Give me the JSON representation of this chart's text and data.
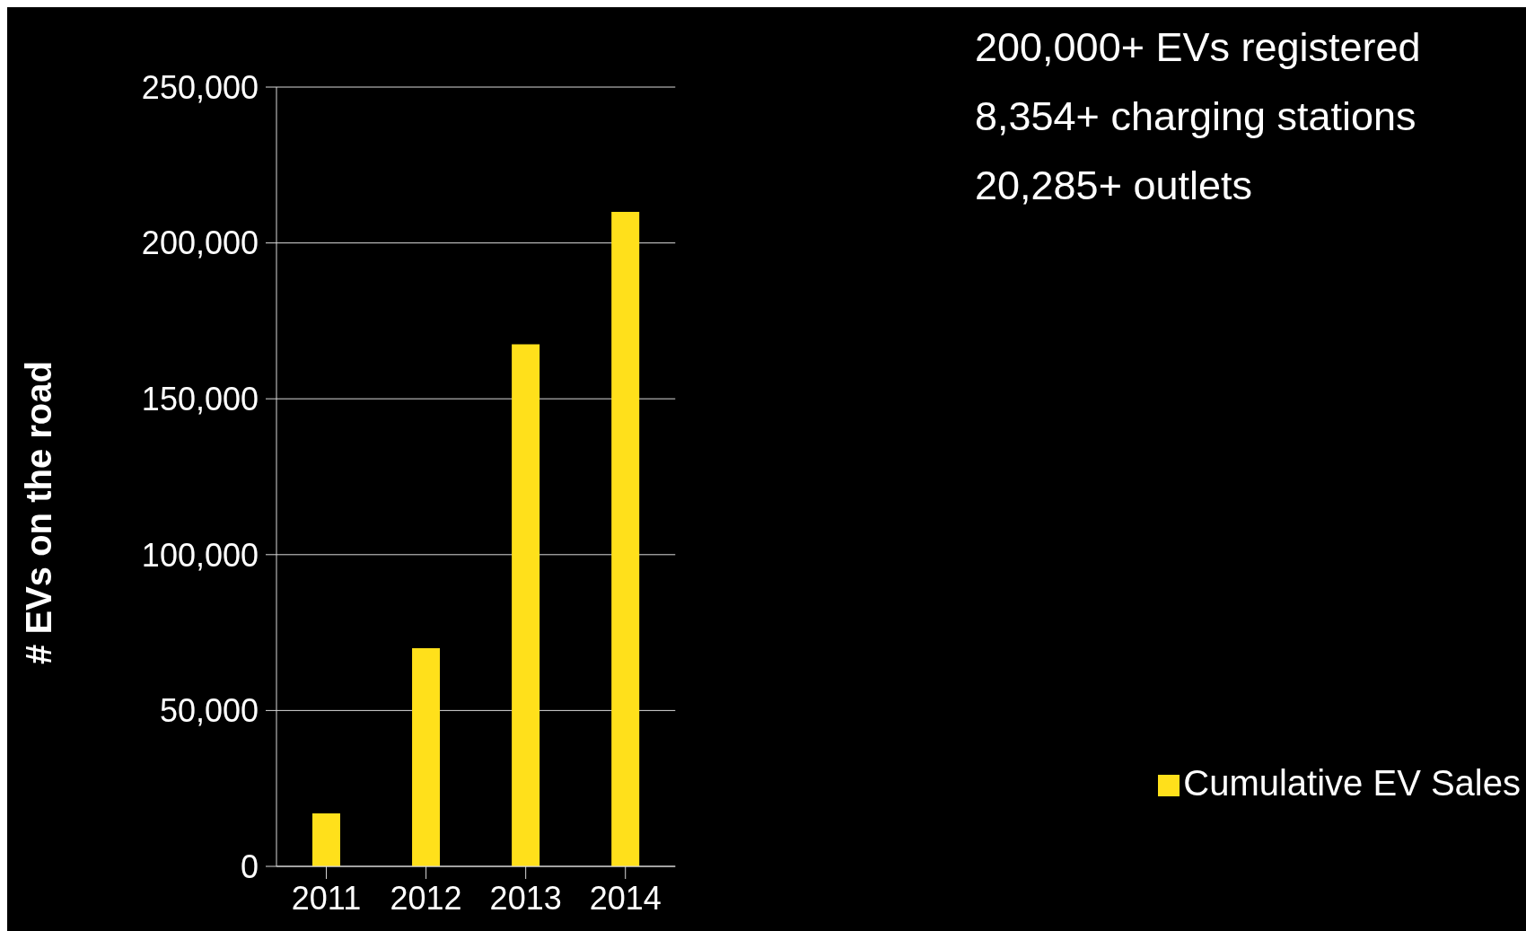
{
  "chart_data": {
    "type": "bar",
    "ylabel": "# EVs on the road",
    "categories": [
      "2011",
      "2012",
      "2013",
      "2014"
    ],
    "series": [
      {
        "name": "Cumulative  EV Sales",
        "color": "#ffe01b",
        "values": [
          17000,
          70000,
          167500,
          210000
        ]
      }
    ],
    "ylim": [
      0,
      250000
    ],
    "yticks": [
      {
        "value": 0,
        "label": "0"
      },
      {
        "value": 50000,
        "label": "50,000"
      },
      {
        "value": 100000,
        "label": "100,000"
      },
      {
        "value": 150000,
        "label": "150,000"
      },
      {
        "value": 200000,
        "label": "200,000"
      },
      {
        "value": 250000,
        "label": "250,000"
      }
    ],
    "grid": "y",
    "legend": "bottom right",
    "annotations": [
      "200,000+ EVs registered",
      "8,354+ charging stations",
      "20,285+ outlets"
    ]
  }
}
